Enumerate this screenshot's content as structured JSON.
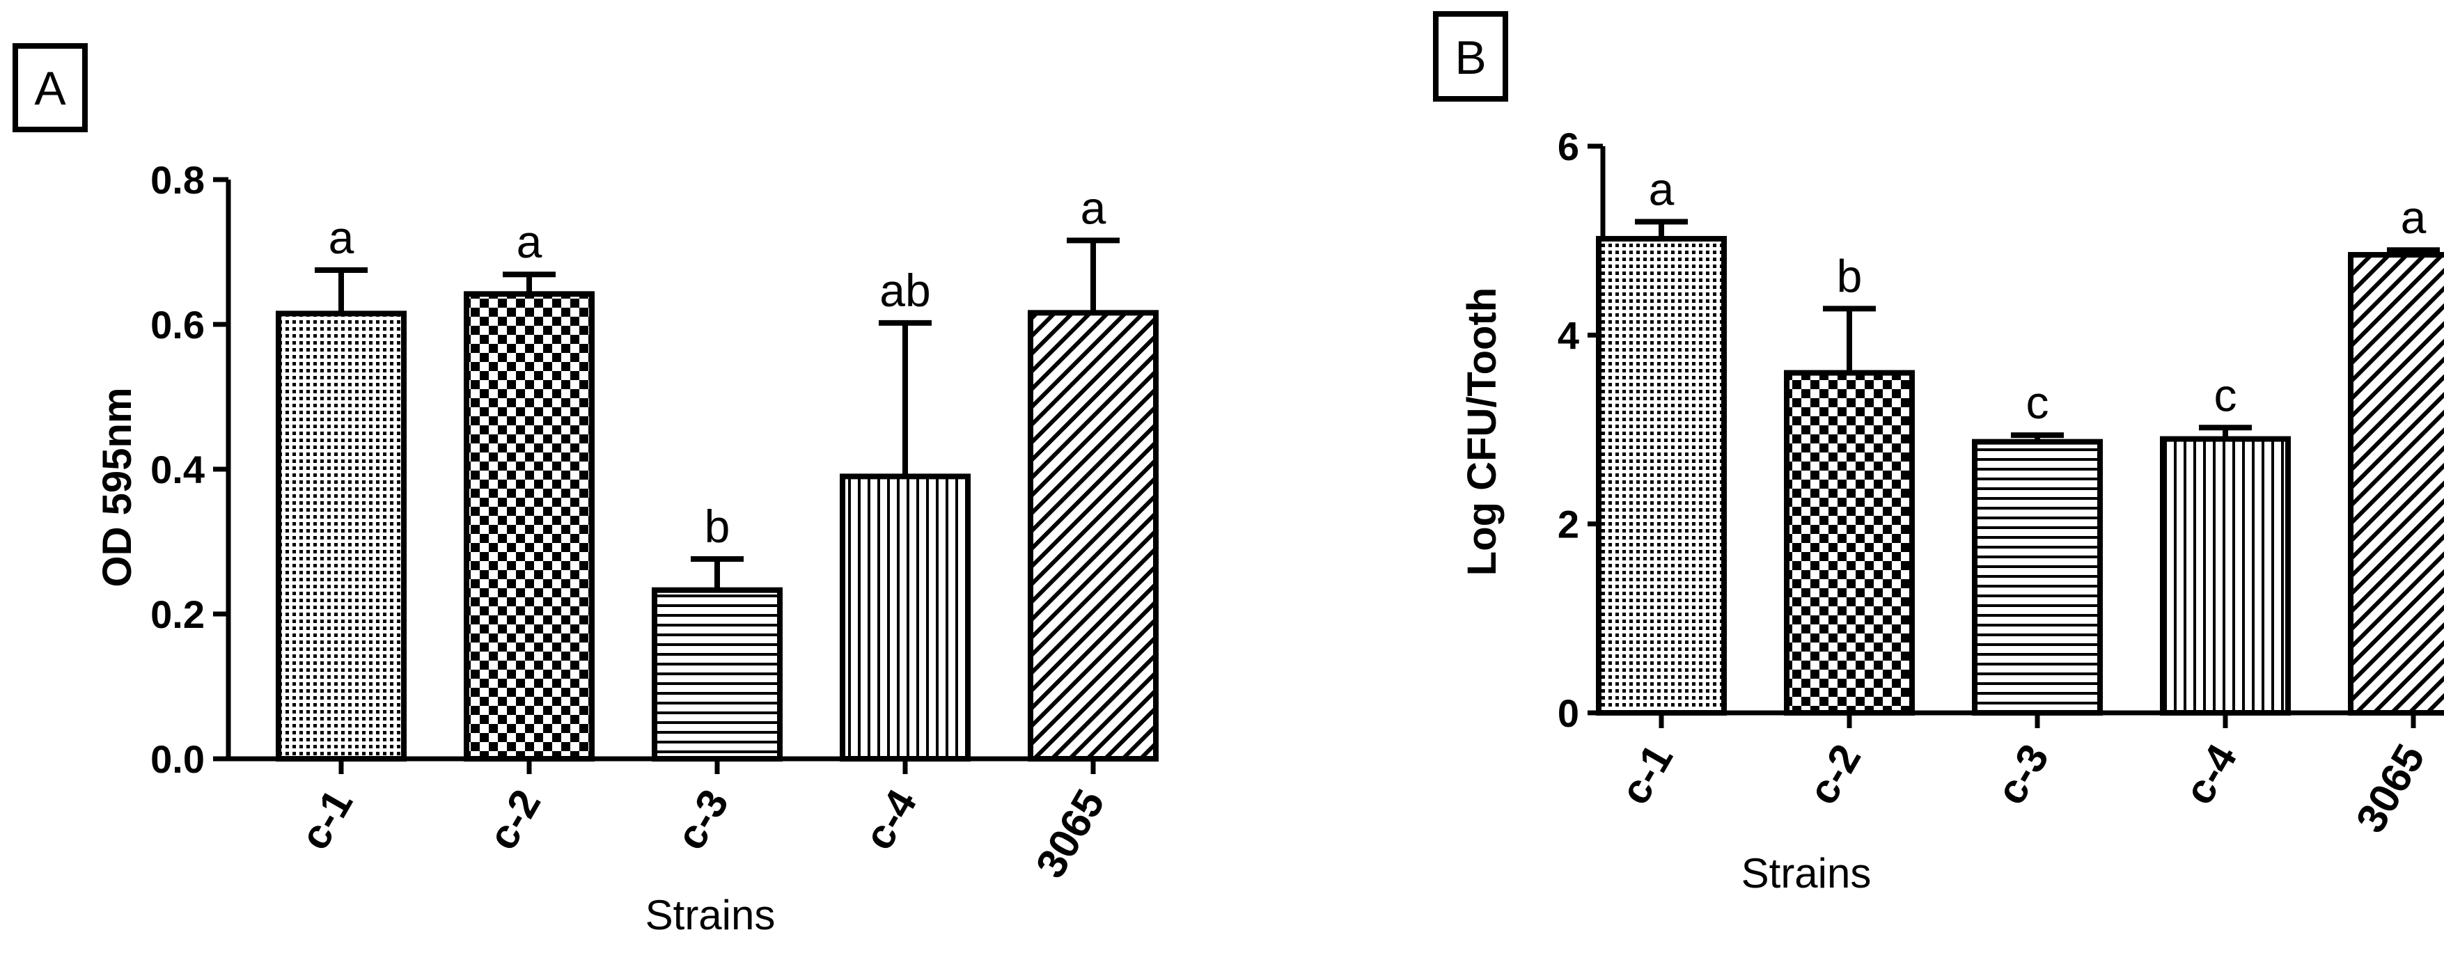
{
  "chart_data": [
    {
      "panel": "A",
      "type": "bar",
      "title": "",
      "xlabel": "Strains",
      "ylabel": "OD 595nm",
      "ylim": [
        0,
        0.8
      ],
      "yticks": [
        0.0,
        0.2,
        0.4,
        0.6,
        0.8
      ],
      "ytick_labels": [
        "0.0",
        "0.2",
        "0.4",
        "0.6",
        "0.8"
      ],
      "categories": [
        "c-1",
        "c-2",
        "c-3",
        "c-4",
        "3065"
      ],
      "values": [
        0.615,
        0.642,
        0.233,
        0.39,
        0.616
      ],
      "errors": [
        0.06,
        0.027,
        0.043,
        0.212,
        0.1
      ],
      "significance": [
        "a",
        "a",
        "b",
        "ab",
        "a"
      ],
      "patterns": [
        "dots",
        "checker",
        "horizontal",
        "vertical",
        "diagonal"
      ]
    },
    {
      "panel": "B",
      "type": "bar",
      "title": "",
      "xlabel": "Strains",
      "ylabel": "Log CFU/Tooth",
      "ylim": [
        0,
        6
      ],
      "yticks": [
        0,
        2,
        4,
        6
      ],
      "ytick_labels": [
        "0",
        "2",
        "4",
        "6"
      ],
      "categories": [
        "c-1",
        "c-2",
        "c-3",
        "c-4",
        "3065"
      ],
      "values": [
        5.02,
        3.6,
        2.87,
        2.9,
        4.85
      ],
      "errors": [
        0.18,
        0.68,
        0.07,
        0.12,
        0.05
      ],
      "significance": [
        "a",
        "b",
        "c",
        "c",
        "a"
      ],
      "patterns": [
        "dots",
        "checker",
        "horizontal",
        "vertical",
        "diagonal"
      ]
    }
  ]
}
